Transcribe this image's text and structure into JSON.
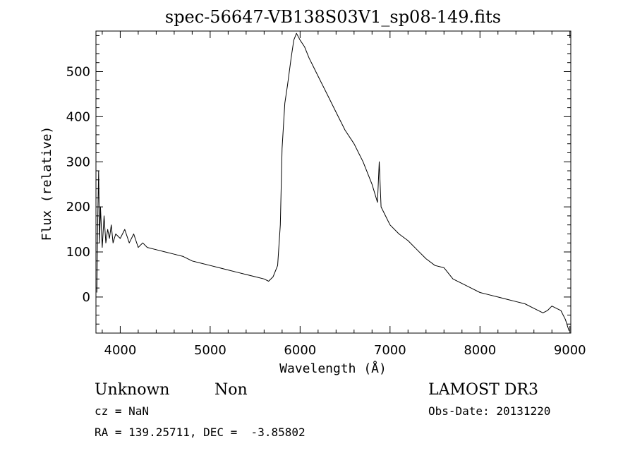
{
  "chart_data": {
    "type": "line",
    "title": "spec-56647-VB138S03V1_sp08-149.fits",
    "xlabel": "Wavelength (Å)",
    "ylabel": "Flux (relative)",
    "xlim": [
      3730,
      9010
    ],
    "ylim": [
      -80,
      590
    ],
    "xticks": [
      4000,
      5000,
      6000,
      7000,
      8000,
      9000
    ],
    "yticks": [
      0,
      100,
      200,
      300,
      400,
      500
    ],
    "series": [
      {
        "points": [
          [
            3740,
            10
          ],
          [
            3750,
            170
          ],
          [
            3760,
            280
          ],
          [
            3770,
            120
          ],
          [
            3780,
            200
          ],
          [
            3800,
            110
          ],
          [
            3820,
            180
          ],
          [
            3840,
            120
          ],
          [
            3860,
            150
          ],
          [
            3880,
            130
          ],
          [
            3900,
            160
          ],
          [
            3920,
            120
          ],
          [
            3950,
            140
          ],
          [
            4000,
            130
          ],
          [
            4050,
            150
          ],
          [
            4100,
            120
          ],
          [
            4150,
            140
          ],
          [
            4200,
            110
          ],
          [
            4250,
            120
          ],
          [
            4300,
            110
          ],
          [
            4400,
            105
          ],
          [
            4500,
            100
          ],
          [
            4600,
            95
          ],
          [
            4700,
            90
          ],
          [
            4800,
            80
          ],
          [
            4900,
            75
          ],
          [
            5000,
            70
          ],
          [
            5100,
            65
          ],
          [
            5200,
            60
          ],
          [
            5300,
            55
          ],
          [
            5400,
            50
          ],
          [
            5500,
            45
          ],
          [
            5600,
            40
          ],
          [
            5650,
            35
          ],
          [
            5700,
            45
          ],
          [
            5750,
            70
          ],
          [
            5780,
            160
          ],
          [
            5800,
            330
          ],
          [
            5830,
            430
          ],
          [
            5860,
            470
          ],
          [
            5900,
            530
          ],
          [
            5930,
            570
          ],
          [
            5960,
            585
          ],
          [
            6000,
            570
          ],
          [
            6050,
            555
          ],
          [
            6100,
            530
          ],
          [
            6150,
            510
          ],
          [
            6200,
            490
          ],
          [
            6300,
            450
          ],
          [
            6400,
            410
          ],
          [
            6500,
            370
          ],
          [
            6600,
            340
          ],
          [
            6700,
            300
          ],
          [
            6800,
            250
          ],
          [
            6860,
            210
          ],
          [
            6880,
            300
          ],
          [
            6900,
            200
          ],
          [
            6950,
            180
          ],
          [
            7000,
            160
          ],
          [
            7100,
            140
          ],
          [
            7200,
            125
          ],
          [
            7300,
            105
          ],
          [
            7400,
            85
          ],
          [
            7500,
            70
          ],
          [
            7600,
            65
          ],
          [
            7700,
            40
          ],
          [
            7800,
            30
          ],
          [
            7900,
            20
          ],
          [
            8000,
            10
          ],
          [
            8100,
            5
          ],
          [
            8200,
            0
          ],
          [
            8300,
            -5
          ],
          [
            8400,
            -10
          ],
          [
            8500,
            -15
          ],
          [
            8600,
            -25
          ],
          [
            8700,
            -35
          ],
          [
            8750,
            -30
          ],
          [
            8800,
            -20
          ],
          [
            8850,
            -25
          ],
          [
            8900,
            -30
          ],
          [
            8950,
            -50
          ],
          [
            8990,
            -75
          ]
        ]
      }
    ]
  },
  "info": {
    "object_class": "Unknown",
    "subclass": "Non",
    "survey": "LAMOST DR3",
    "redshift": "cz = NaN",
    "obs_date": "Obs-Date: 20131220",
    "coords": "RA = 139.25711, DEC =  -3.85802"
  }
}
